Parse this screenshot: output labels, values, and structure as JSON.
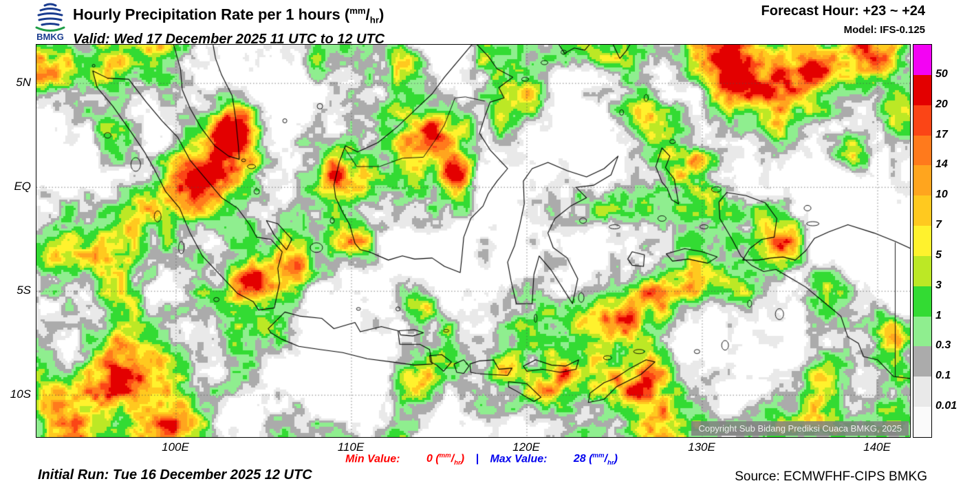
{
  "header": {
    "logo_text": "BMKG",
    "title": "Hourly Precipitation Rate per 1 hours",
    "valid": "Valid: Wed 17 December 2025 11 UTC to 12 UTC",
    "forecast_hour": "Forecast Hour: +23 ~ +24",
    "model": "Model: IFS-0.125"
  },
  "units": {
    "open": "(",
    "num": "mm",
    "slash": "/",
    "den": "hr",
    "close": ")"
  },
  "map": {
    "x_ticks": [
      {
        "label": "100E",
        "lon": 100
      },
      {
        "label": "110E",
        "lon": 110
      },
      {
        "label": "120E",
        "lon": 120
      },
      {
        "label": "130E",
        "lon": 130
      },
      {
        "label": "140E",
        "lon": 140
      }
    ],
    "y_ticks": [
      {
        "label": "5N",
        "lat": 5
      },
      {
        "label": "EQ",
        "lat": 0
      },
      {
        "label": "5S",
        "lat": -5
      },
      {
        "label": "10S",
        "lat": -10
      }
    ],
    "watermark": "Copyright Sub Bidang Prediksi Cuaca BMKG, 2025"
  },
  "legend": {
    "labels": [
      "50",
      "20",
      "17",
      "14",
      "10",
      "7",
      "5",
      "3",
      "1",
      "0.3",
      "0.1",
      "0.01"
    ],
    "colors": [
      "#F303F3",
      "#E30000",
      "#FB4516",
      "#FF7A1C",
      "#FFA51E",
      "#FFC91F",
      "#FFF22D",
      "#BCE825",
      "#33DB33",
      "#8FEE8F",
      "#ABABAB",
      "#E9E9E9",
      "#FAFAFA"
    ]
  },
  "footer": {
    "min_label": "Min Value:",
    "min_value": "0",
    "separator": "|",
    "max_label": "Max Value:",
    "max_value": "28",
    "initial_run": "Initial Run: Tue 16 December 2025 12 UTC",
    "source": "Source: ECMWFHF-CIPS BMKG"
  },
  "colors": {
    "min": "#FF0000",
    "max": "#0000EE",
    "separator": "#0000EE",
    "logo_blue": "#1a3c8f",
    "logo_green": "#1e9e46"
  }
}
